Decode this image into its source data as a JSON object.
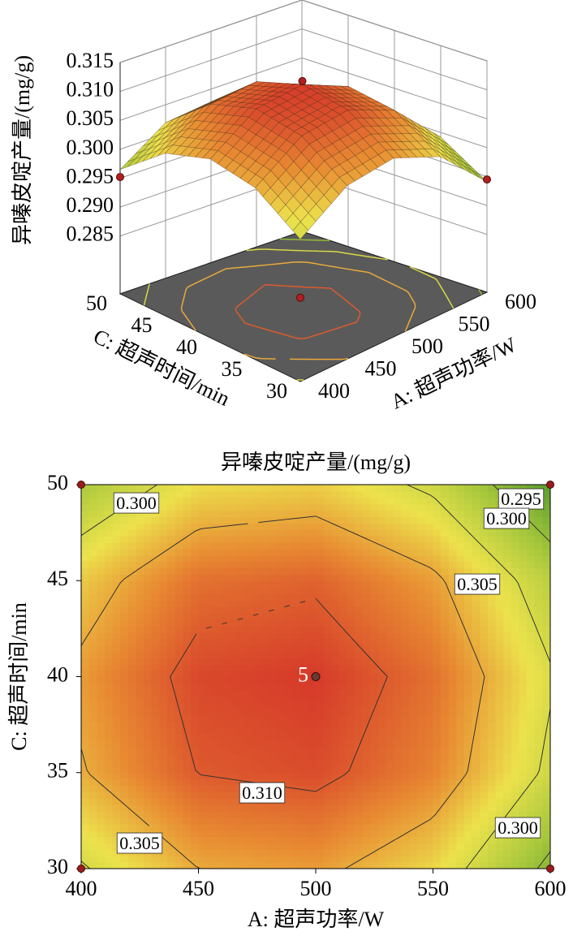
{
  "chart_data": [
    {
      "type": "surface3d",
      "zlabel": "异嗪皮啶产量/(mg/g)",
      "xlabel": "A: 超声功率/W",
      "ylabel": "C: 超声时间/min",
      "x": [
        400,
        450,
        500,
        550,
        600
      ],
      "y": [
        30,
        35,
        40,
        45,
        50
      ],
      "z": [
        [
          0.2996,
          0.305,
          0.3059,
          0.3023,
          0.2941
        ],
        [
          0.3047,
          0.3101,
          0.311,
          0.3074,
          0.2992
        ],
        [
          0.3059,
          0.3113,
          0.3122,
          0.3086,
          0.3004
        ],
        [
          0.3031,
          0.3086,
          0.3095,
          0.3058,
          0.2977
        ],
        [
          0.2965,
          0.3019,
          0.3028,
          0.2992,
          0.291
        ]
      ],
      "xlim": [
        400,
        600
      ],
      "ylim": [
        30,
        50
      ],
      "zlim": [
        0.275,
        0.315
      ],
      "xticks": [
        400,
        450,
        500,
        550,
        600
      ],
      "yticks": [
        30,
        35,
        40,
        45,
        50
      ],
      "zticks": [
        0.285,
        {
          "value": 0.29,
          "label": "0.290"
        },
        0.295,
        {
          "value": 0.3,
          "label": "0.300"
        },
        0.305,
        {
          "value": 0.31,
          "label": "0.310"
        },
        0.315
      ],
      "levels": [
        0.29,
        0.295,
        0.3,
        0.305,
        0.31
      ],
      "colors": [
        "#5a9e2e",
        "#a8c83c",
        "#ece24c",
        "#e88a32",
        "#d63a2a"
      ],
      "points": {
        "x": [
          500,
          400,
          600,
          400
        ],
        "y": [
          40,
          50,
          30,
          30
        ],
        "z": [
          0.3128,
          0.2952,
          0.2945,
          0.2895
        ]
      }
    },
    {
      "type": "contour",
      "title": "异嗪皮啶产量/(mg/g)",
      "xlabel": "A: 超声功率/W",
      "ylabel": "C: 超声时间/min",
      "x": [
        400,
        450,
        500,
        550,
        600
      ],
      "y": [
        30,
        35,
        40,
        45,
        50
      ],
      "z": [
        [
          0.2996,
          0.305,
          0.3059,
          0.3023,
          0.2941
        ],
        [
          0.3047,
          0.3101,
          0.311,
          0.3074,
          0.2992
        ],
        [
          0.3059,
          0.3113,
          0.3122,
          0.3086,
          0.3004
        ],
        [
          0.3031,
          0.3086,
          0.3095,
          0.3058,
          0.2977
        ],
        [
          0.2965,
          0.3019,
          0.3028,
          0.2992,
          0.291
        ]
      ],
      "xlim": [
        400,
        600
      ],
      "ylim": [
        30,
        50
      ],
      "xticks": [
        400,
        450,
        500,
        550,
        600
      ],
      "yticks": [
        30,
        35,
        40,
        45,
        50
      ],
      "levels": [
        0.295,
        0.3,
        0.305,
        0.31
      ],
      "contour_labels": [
        {
          "value": 0.3,
          "label": "0.300"
        },
        {
          "value": 0.295,
          "label": "0.295"
        },
        {
          "value": 0.3,
          "label": "0.300"
        },
        {
          "value": 0.305,
          "label": "0.305"
        },
        {
          "value": 0.31,
          "label": "0.310"
        },
        {
          "value": 0.305,
          "label": "0.305"
        },
        {
          "value": 0.3,
          "label": "0.300"
        }
      ],
      "colors": [
        "#5a9e2e",
        "#a8c83c",
        "#ece24c",
        "#e88a32",
        "#d63a2a"
      ],
      "points": {
        "x": [
          400,
          400,
          600,
          600,
          500
        ],
        "y": [
          30,
          50,
          50,
          30,
          40
        ],
        "labels": [
          null,
          null,
          null,
          null,
          "5"
        ]
      }
    }
  ]
}
